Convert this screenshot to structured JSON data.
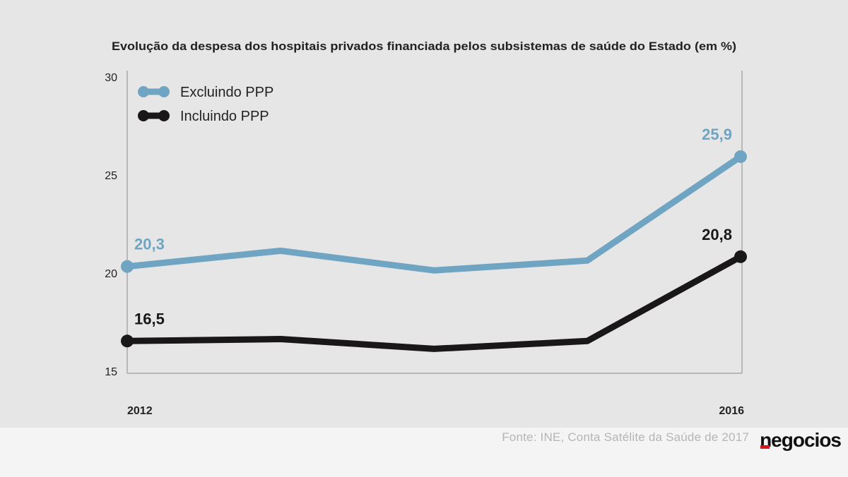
{
  "chart_data": {
    "type": "line",
    "title": "Evolução da despesa dos hospitais privados financiada pelos subsistemas de saúde do Estado (em %)",
    "x": [
      2012,
      2013,
      2014,
      2015,
      2016
    ],
    "x_tick_labels": [
      "2012",
      "2016"
    ],
    "y_ticks": [
      15,
      20,
      25,
      30
    ],
    "ylim": [
      15,
      30
    ],
    "grid": false,
    "legend_position": "top-left",
    "series": [
      {
        "name": "Excluindo PPP",
        "color": "#6fa5c2",
        "values": [
          20.3,
          21.1,
          20.1,
          20.6,
          25.9
        ],
        "labels": {
          "0": "20,3",
          "4": "25,9"
        }
      },
      {
        "name": "Incluindo PPP",
        "color": "#1a1718",
        "values": [
          16.5,
          16.6,
          16.1,
          16.5,
          20.8
        ],
        "labels": {
          "0": "16,5",
          "4": "20,8"
        }
      }
    ]
  },
  "footer": {
    "source": "Fonte: INE, Conta Satélite da Saúde de 2017",
    "brand": "negocios"
  }
}
